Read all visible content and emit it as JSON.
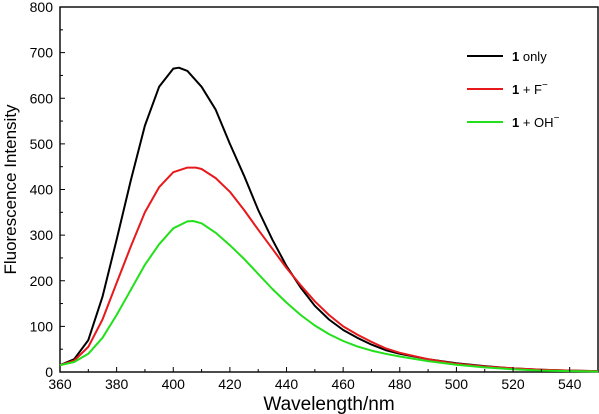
{
  "chart_data": {
    "type": "line",
    "title": "",
    "xlabel": "Wavelength/nm",
    "ylabel": "Fluorescence Intensity",
    "xlim": [
      360,
      550
    ],
    "ylim": [
      0,
      800
    ],
    "xticks": [
      360,
      380,
      400,
      420,
      440,
      460,
      480,
      500,
      520,
      540
    ],
    "yticks": [
      0,
      100,
      200,
      300,
      400,
      500,
      600,
      700,
      800
    ],
    "grid": false,
    "legend_position": "top-right",
    "series": [
      {
        "name_bold": "1",
        "name_rest": " only",
        "name_sup": "",
        "color": "#000000",
        "points": [
          [
            360,
            15
          ],
          [
            365,
            28
          ],
          [
            370,
            70
          ],
          [
            375,
            165
          ],
          [
            380,
            290
          ],
          [
            385,
            420
          ],
          [
            390,
            540
          ],
          [
            395,
            625
          ],
          [
            400,
            665
          ],
          [
            402,
            667
          ],
          [
            405,
            660
          ],
          [
            410,
            625
          ],
          [
            415,
            575
          ],
          [
            420,
            500
          ],
          [
            425,
            430
          ],
          [
            430,
            355
          ],
          [
            435,
            290
          ],
          [
            440,
            232
          ],
          [
            445,
            185
          ],
          [
            450,
            145
          ],
          [
            455,
            115
          ],
          [
            460,
            92
          ],
          [
            465,
            75
          ],
          [
            470,
            60
          ],
          [
            475,
            48
          ],
          [
            480,
            40
          ],
          [
            490,
            28
          ],
          [
            500,
            19
          ],
          [
            510,
            13
          ],
          [
            520,
            8
          ],
          [
            530,
            5
          ],
          [
            540,
            3
          ],
          [
            550,
            2
          ]
        ]
      },
      {
        "name_bold": "1",
        "name_rest": " + F",
        "name_sup": "−",
        "color": "#e8191c",
        "points": [
          [
            360,
            15
          ],
          [
            365,
            25
          ],
          [
            370,
            55
          ],
          [
            375,
            115
          ],
          [
            380,
            195
          ],
          [
            385,
            275
          ],
          [
            390,
            350
          ],
          [
            395,
            405
          ],
          [
            400,
            438
          ],
          [
            405,
            448
          ],
          [
            408,
            448
          ],
          [
            410,
            445
          ],
          [
            415,
            425
          ],
          [
            420,
            395
          ],
          [
            425,
            355
          ],
          [
            430,
            312
          ],
          [
            435,
            270
          ],
          [
            440,
            228
          ],
          [
            445,
            190
          ],
          [
            450,
            155
          ],
          [
            455,
            125
          ],
          [
            460,
            100
          ],
          [
            465,
            82
          ],
          [
            470,
            66
          ],
          [
            475,
            52
          ],
          [
            480,
            42
          ],
          [
            490,
            28
          ],
          [
            500,
            18
          ],
          [
            510,
            12
          ],
          [
            520,
            8
          ],
          [
            530,
            5
          ],
          [
            540,
            3
          ],
          [
            550,
            2
          ]
        ]
      },
      {
        "name_bold": "1",
        "name_rest": " + OH",
        "name_sup": "−",
        "color": "#22e01a",
        "points": [
          [
            360,
            15
          ],
          [
            365,
            22
          ],
          [
            370,
            40
          ],
          [
            375,
            75
          ],
          [
            380,
            125
          ],
          [
            385,
            180
          ],
          [
            390,
            235
          ],
          [
            395,
            280
          ],
          [
            400,
            315
          ],
          [
            405,
            330
          ],
          [
            407,
            331
          ],
          [
            410,
            326
          ],
          [
            415,
            305
          ],
          [
            420,
            278
          ],
          [
            425,
            248
          ],
          [
            430,
            215
          ],
          [
            435,
            182
          ],
          [
            440,
            152
          ],
          [
            445,
            125
          ],
          [
            450,
            102
          ],
          [
            455,
            83
          ],
          [
            460,
            68
          ],
          [
            465,
            56
          ],
          [
            470,
            47
          ],
          [
            475,
            40
          ],
          [
            480,
            34
          ],
          [
            490,
            24
          ],
          [
            500,
            16
          ],
          [
            510,
            10
          ],
          [
            520,
            6
          ],
          [
            530,
            3
          ],
          [
            540,
            2
          ],
          [
            550,
            1
          ]
        ]
      }
    ]
  }
}
